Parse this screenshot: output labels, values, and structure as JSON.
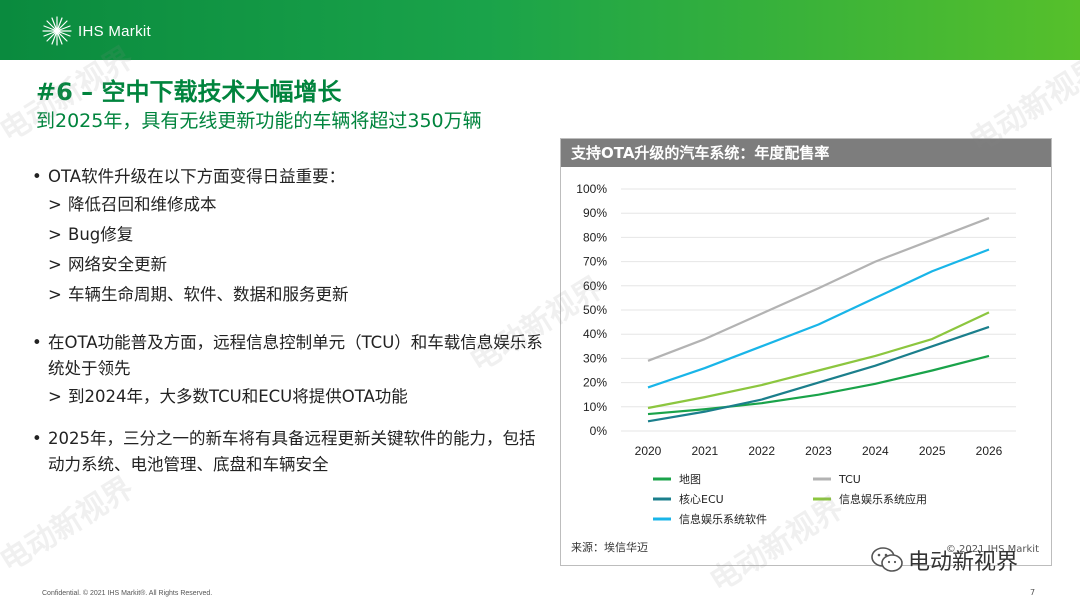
{
  "header": {
    "logo_text": "IHS Markit"
  },
  "title": "#6 – 空中下载技术大幅增长",
  "subtitle": "到2025年，具有无线更新功能的车辆将超过350万辆",
  "bullets": [
    {
      "text": "OTA软件升级在以下方面变得日益重要：",
      "subs": [
        "降低召回和维修成本",
        "Bug修复",
        "网络安全更新",
        "车辆生命周期、软件、数据和服务更新"
      ]
    },
    {
      "text": "在OTA功能普及方面，远程信息控制单元（TCU）和车载信息娱乐系统处于领先",
      "subs": [
        "到2024年，大多数TCU和ECU将提供OTA功能"
      ]
    },
    {
      "text": "2025年，三分之一的新车将有具备远程更新关键软件的能力，包括动力系统、电池管理、底盘和车辆安全",
      "subs": []
    }
  ],
  "sub_marker": ">",
  "chart_panel": {
    "title": "支持OTA升级的汽车系统：年度配售率",
    "source": "来源：埃信华迈",
    "copyright": "© 2021 IHS Markit"
  },
  "chart_data": {
    "type": "line",
    "title": "支持OTA升级的汽车系统：年度配售率",
    "x": [
      "2020",
      "2021",
      "2022",
      "2023",
      "2024",
      "2025",
      "2026"
    ],
    "ylim": [
      0,
      100
    ],
    "yticks": [
      "0%",
      "10%",
      "20%",
      "30%",
      "40%",
      "50%",
      "60%",
      "70%",
      "80%",
      "90%",
      "100%"
    ],
    "grid": true,
    "series": [
      {
        "name": "地图",
        "color": "#1aa34a",
        "values": [
          7,
          9,
          11.5,
          15,
          19.5,
          25,
          31
        ]
      },
      {
        "name": "TCU",
        "color": "#b3b3b3",
        "values": [
          29,
          38,
          48.5,
          59,
          70,
          79,
          88
        ]
      },
      {
        "name": "核心ECU",
        "color": "#1b7f8c",
        "values": [
          4,
          8,
          13,
          20,
          27,
          35,
          43
        ]
      },
      {
        "name": "信息娱乐系统应用",
        "color": "#8cc63f",
        "values": [
          9.5,
          14,
          19,
          25,
          31,
          38,
          49
        ]
      },
      {
        "name": "信息娱乐系统软件",
        "color": "#19b5e8",
        "values": [
          18,
          26,
          35,
          44,
          55,
          66,
          75
        ]
      }
    ]
  },
  "watermark": "电动新视界",
  "wechat_label": "电动新视界",
  "footer": "Confidential. © 2021 IHS Markit®. All Rights Reserved.",
  "page_number": "7"
}
